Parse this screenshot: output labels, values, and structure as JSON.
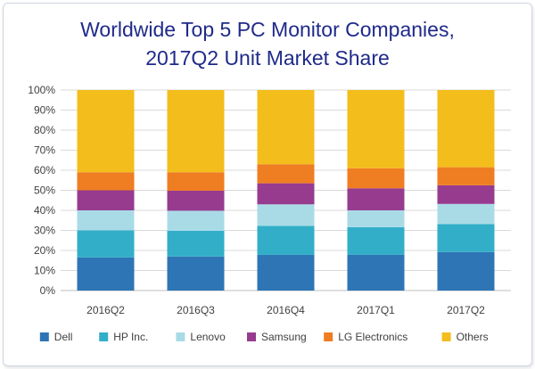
{
  "chart_data": {
    "type": "bar",
    "stacked": true,
    "title_line1": "Worldwide Top 5 PC Monitor Companies,",
    "title_line2": "2017Q2 Unit Market Share",
    "categories": [
      "2016Q2",
      "2016Q3",
      "2016Q4",
      "2017Q1",
      "2017Q2"
    ],
    "series": [
      {
        "name": "Dell",
        "color": "#2e75b6",
        "values": [
          16.5,
          17.0,
          17.8,
          17.8,
          19.2
        ]
      },
      {
        "name": "HP Inc.",
        "color": "#33aec8",
        "values": [
          13.5,
          12.8,
          14.5,
          13.8,
          14.0
        ]
      },
      {
        "name": "Lenovo",
        "color": "#a9dbe7",
        "values": [
          10.0,
          10.0,
          10.7,
          8.4,
          10.0
        ]
      },
      {
        "name": "Samsung",
        "color": "#973b8f",
        "values": [
          10.0,
          10.0,
          10.5,
          11.0,
          9.3
        ]
      },
      {
        "name": "LG Electronics",
        "color": "#ef7d22",
        "values": [
          9.0,
          9.2,
          9.5,
          10.0,
          9.0
        ]
      },
      {
        "name": "Others",
        "color": "#f3bd1c",
        "values": [
          41.0,
          41.0,
          37.0,
          39.0,
          38.5
        ]
      }
    ],
    "y_ticks": [
      "0%",
      "10%",
      "20%",
      "30%",
      "40%",
      "50%",
      "60%",
      "70%",
      "80%",
      "90%",
      "100%"
    ],
    "ylim": [
      0,
      100
    ],
    "grid": true,
    "legend": "bottom"
  }
}
